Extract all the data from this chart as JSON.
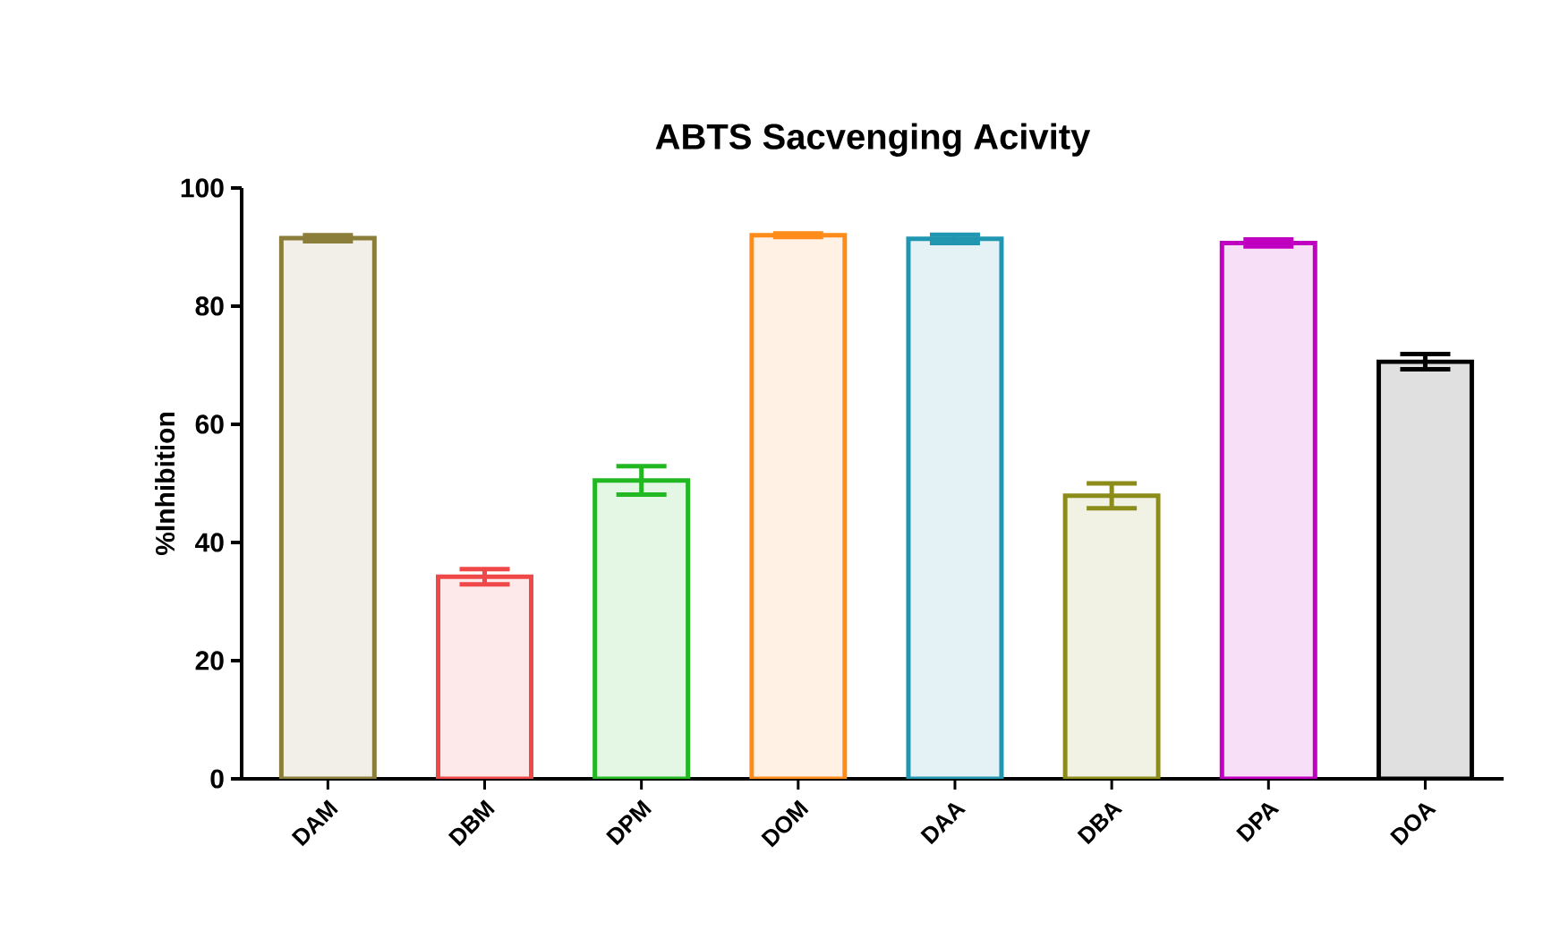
{
  "chart_data": {
    "type": "bar",
    "title": "ABTS Sacvenging Acivity",
    "ylabel": "%Inhibition",
    "categories": [
      "DAM",
      "DBM",
      "DPM",
      "DOM",
      "DAA",
      "DBA",
      "DPA",
      "DOA"
    ],
    "values": [
      91.5,
      34.2,
      50.5,
      92,
      91.4,
      47.9,
      90.7,
      70.6
    ],
    "errors": [
      0.5,
      1.3,
      2.4,
      0.3,
      0.7,
      2.1,
      0.6,
      1.3
    ],
    "colors": [
      "#8b7d3a",
      "#f04848",
      "#22b822",
      "#ff8c1a",
      "#2196b0",
      "#8c8c1a",
      "#c000c0",
      "#000000"
    ],
    "ylim": [
      0,
      100
    ],
    "yticks": [
      0,
      20,
      40,
      60,
      80,
      100
    ],
    "grid": false
  }
}
